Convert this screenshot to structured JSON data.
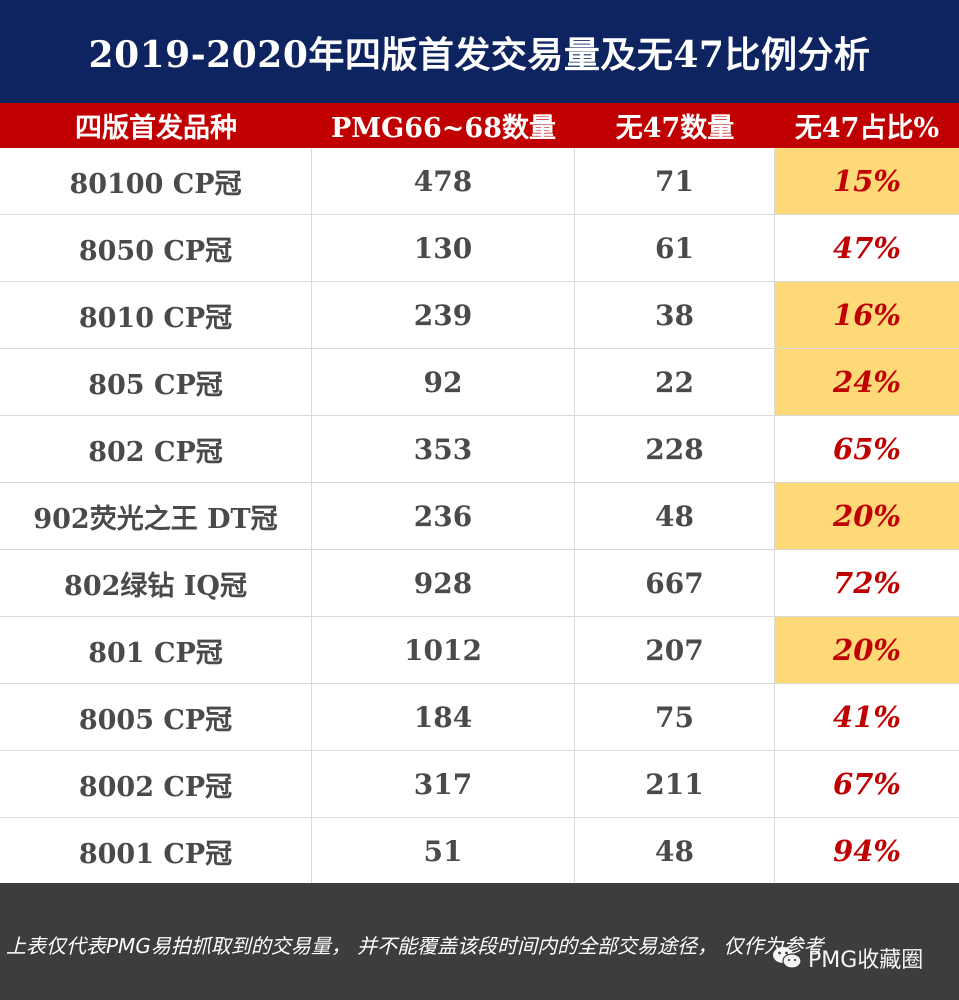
{
  "title": "2019-2020年四版首发交易量及无47比例分析",
  "headers": {
    "variety": "四版首发品种",
    "pmg_count": "PMG66~68数量",
    "no47_count": "无47数量",
    "no47_ratio": "无47占比%"
  },
  "rows": [
    {
      "variety": "80100 CP冠",
      "pmg_count": "478",
      "no47_count": "71",
      "ratio": "15%",
      "highlighted": true
    },
    {
      "variety": "8050 CP冠",
      "pmg_count": "130",
      "no47_count": "61",
      "ratio": "47%",
      "highlighted": false
    },
    {
      "variety": "8010 CP冠",
      "pmg_count": "239",
      "no47_count": "38",
      "ratio": "16%",
      "highlighted": true
    },
    {
      "variety": "805 CP冠",
      "pmg_count": "92",
      "no47_count": "22",
      "ratio": "24%",
      "highlighted": true
    },
    {
      "variety": "802 CP冠",
      "pmg_count": "353",
      "no47_count": "228",
      "ratio": "65%",
      "highlighted": false
    },
    {
      "variety": "902荧光之王 DT冠",
      "pmg_count": "236",
      "no47_count": "48",
      "ratio": "20%",
      "highlighted": true
    },
    {
      "variety": "802绿钻 IQ冠",
      "pmg_count": "928",
      "no47_count": "667",
      "ratio": "72%",
      "highlighted": false
    },
    {
      "variety": "801 CP冠",
      "pmg_count": "1012",
      "no47_count": "207",
      "ratio": "20%",
      "highlighted": true
    },
    {
      "variety": "8005 CP冠",
      "pmg_count": "184",
      "no47_count": "75",
      "ratio": "41%",
      "highlighted": false
    },
    {
      "variety": "8002 CP冠",
      "pmg_count": "317",
      "no47_count": "211",
      "ratio": "67%",
      "highlighted": false
    },
    {
      "variety": "8001 CP冠",
      "pmg_count": "51",
      "no47_count": "48",
      "ratio": "94%",
      "highlighted": false
    }
  ],
  "footnote": "上表仅代表PMG易拍抓取到的交易量， 并不能覆盖该段时间内的全部交易途径， 仅作为参考",
  "watermark": {
    "icon": "wechat-icon",
    "text": "PMG收藏圈"
  },
  "colors": {
    "title_bg": "#0d2461",
    "header_bg": "#c00000",
    "highlight": "#fdd978",
    "ratio_text": "#c00000",
    "footer_bg": "#3d3d3d"
  }
}
